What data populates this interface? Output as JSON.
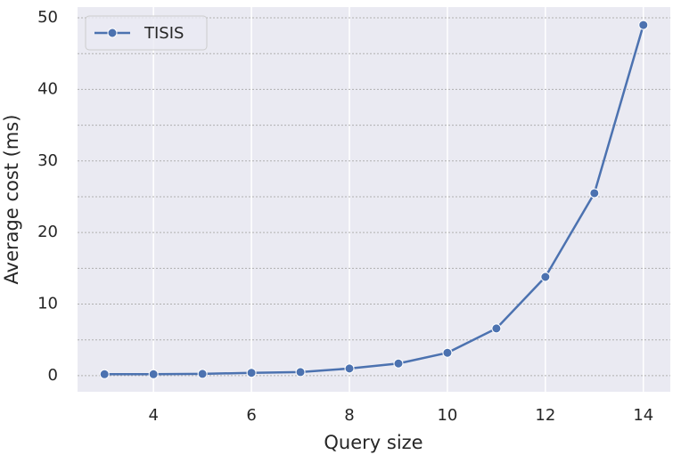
{
  "chart_data": {
    "type": "line",
    "x_label": "Query size",
    "y_label": "Average cost (ms)",
    "x": [
      3,
      4,
      5,
      6,
      7,
      8,
      9,
      10,
      11,
      12,
      13,
      14
    ],
    "series": [
      {
        "name": "TISIS",
        "color": "#4c72b0",
        "values": [
          0.2,
          0.2,
          0.25,
          0.4,
          0.5,
          1.0,
          1.7,
          3.2,
          6.6,
          13.8,
          25.5,
          49.0
        ]
      }
    ],
    "xlim": [
      2.45,
      14.55
    ],
    "ylim": [
      -2.25,
      51.5
    ],
    "xticks": [
      4,
      6,
      8,
      10,
      12,
      14
    ],
    "yticks": [
      0,
      10,
      20,
      30,
      40,
      50
    ],
    "y_minor_ticks": [
      5,
      15,
      25,
      35,
      45
    ],
    "grid": true,
    "legend": "upper left",
    "background": "#eaeaf2"
  }
}
